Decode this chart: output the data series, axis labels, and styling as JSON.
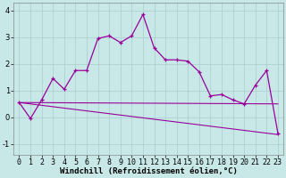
{
  "xlabel": "Windchill (Refroidissement éolien,°C)",
  "background_color": "#c8e8e8",
  "grid_color": "#aacccc",
  "line_color": "#990099",
  "x": [
    0,
    1,
    2,
    3,
    4,
    5,
    6,
    7,
    8,
    9,
    10,
    11,
    12,
    13,
    14,
    15,
    16,
    17,
    18,
    19,
    20,
    21,
    22,
    23
  ],
  "y_main": [
    0.55,
    -0.05,
    0.65,
    1.45,
    1.05,
    1.75,
    1.75,
    2.95,
    3.05,
    2.8,
    3.05,
    3.85,
    2.6,
    2.15,
    2.15,
    2.1,
    1.7,
    0.8,
    0.85,
    0.65,
    0.5,
    1.2,
    1.75,
    -0.6
  ],
  "y_reg_upper_start": 0.55,
  "y_reg_upper_end": 0.5,
  "y_reg_lower_start": 0.55,
  "y_reg_lower_end": -0.65,
  "ylim": [
    -1.4,
    4.3
  ],
  "xlim": [
    -0.5,
    23.5
  ],
  "yticks": [
    -1,
    0,
    1,
    2,
    3,
    4
  ],
  "xlabel_fontsize": 6.5,
  "tick_fontsize": 6.0
}
